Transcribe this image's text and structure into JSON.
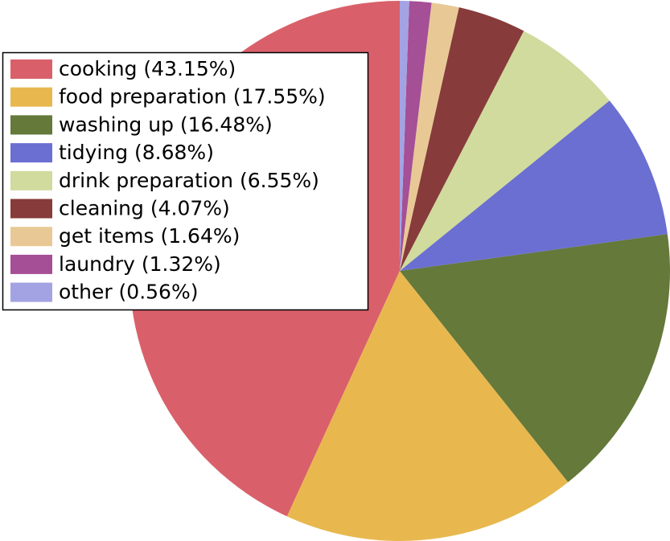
{
  "chart_data": {
    "type": "pie",
    "categories": [
      "cooking (43.15%)",
      "food preparation (17.55%)",
      "washing up (16.48%)",
      "tidying (8.68%)",
      "drink preparation (6.55%)",
      "cleaning (4.07%)",
      "get items (1.64%)",
      "laundry (1.32%)",
      "other (0.56%)"
    ],
    "values": [
      43.15,
      17.55,
      16.48,
      8.68,
      6.55,
      4.07,
      1.64,
      1.32,
      0.56
    ],
    "colors": [
      "#d9606a",
      "#e8b84f",
      "#64793a",
      "#6b6fd1",
      "#d0db9d",
      "#873b3b",
      "#e8c995",
      "#a54f96",
      "#a3a3e3"
    ],
    "legend": "upper left"
  }
}
